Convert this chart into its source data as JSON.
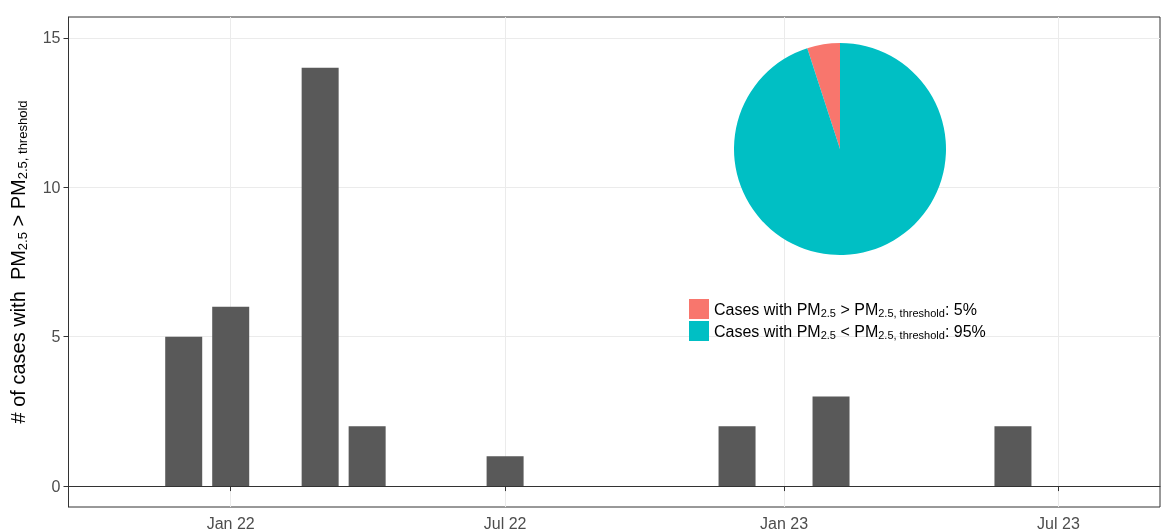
{
  "chart_data": [
    {
      "type": "bar",
      "ylabel": "# of cases with  PM$_{2.5}$ > PM$_{2.5, threshold}$",
      "x": [
        "2021-12",
        "2022-01",
        "2022-03",
        "2022-04",
        "2022-07",
        "2022-12",
        "2023-02",
        "2023-06"
      ],
      "values": [
        5,
        6,
        14,
        2,
        1,
        2,
        3,
        2
      ],
      "color": "#595959",
      "xlim": [
        "2021-09-16",
        "2023-09-06"
      ],
      "xticks": [
        {
          "value": "2022-01",
          "label": "Jan 22"
        },
        {
          "value": "2022-07",
          "label": "Jul 22"
        },
        {
          "value": "2023-01",
          "label": "Jan 23"
        },
        {
          "value": "2023-07",
          "label": "Jul 23"
        }
      ],
      "ylim": [
        -0.7,
        15.7
      ],
      "yticks": [
        0,
        5,
        10,
        15
      ],
      "grid": true,
      "legend": false
    },
    {
      "type": "pie",
      "categories": [
        "Cases with PM$_{2.5}$ > PM$_{2.5, threshold}$: 5%",
        "Cases with PM$_{2.5}$ < PM$_{2.5, threshold}$: 95%"
      ],
      "values": [
        5,
        95
      ],
      "colors": [
        "#f8766d",
        "#00bfc4"
      ],
      "legend": "bottom"
    }
  ]
}
